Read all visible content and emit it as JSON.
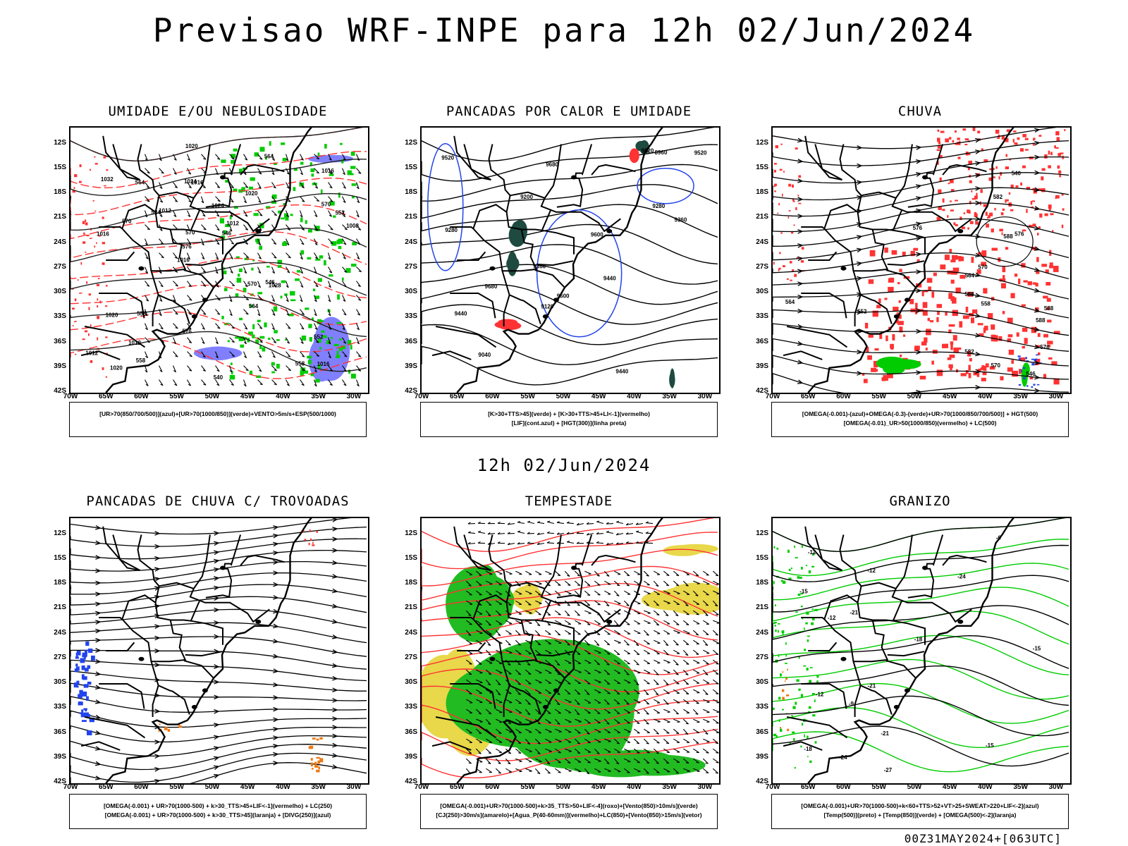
{
  "header": {
    "title": "Previsao WRF-INPE  para 12h 02/Jun/2024",
    "subtitle": "12h 02/Jun/2024",
    "footer": "00Z31MAY2024+[063UTC]"
  },
  "colors": {
    "humidity_blue": "#8080ff",
    "humidity_green": "#00cc00",
    "red": "#ff3333",
    "dark_green": "#1e4a40",
    "blue": "#2244ee",
    "yellow": "#e8d84a",
    "orange": "#ee7711",
    "storm_green": "#22bb22"
  },
  "axes": {
    "lat_labels": [
      "12S",
      "15S",
      "18S",
      "21S",
      "24S",
      "27S",
      "30S",
      "33S",
      "36S",
      "39S",
      "42S"
    ],
    "lon_labels": [
      "70W",
      "65W",
      "60W",
      "55W",
      "50W",
      "45W",
      "40W",
      "35W",
      "30W"
    ]
  },
  "chart_data": [
    {
      "type": "map",
      "id": "p1",
      "title": "UMIDADE E/OU NEBULOSIDADE",
      "legend": [
        "[UR>70(850/700/500)](azul)+[UR>70(1000/850)](verde)+VENTO>5m/s+ESP(500/1000)"
      ],
      "xlim": [
        -70,
        -28
      ],
      "ylim": [
        -42,
        -10
      ],
      "contour_labels": [
        "1016",
        "1016",
        "1016",
        "1016",
        "1020",
        "1020",
        "1024",
        "1024",
        "1020",
        "1012",
        "1012",
        "1012",
        "1016",
        "1012",
        "1028",
        "1032",
        "1020",
        "1008",
        "570",
        "570",
        "576",
        "576",
        "570",
        "564",
        "564",
        "558",
        "558",
        "552",
        "546",
        "540",
        "534",
        "570",
        "564",
        "558",
        "552",
        "546"
      ]
    },
    {
      "type": "map",
      "id": "p2",
      "title": "PANCADAS POR CALOR E UMIDADE",
      "legend": [
        "[K>30+TTS>45](verde) + [K>30+TTS>45+LI<-1](vermelho)",
        "[LIF](cont.azul) + [HGT(300)](linha preta)"
      ],
      "xlim": [
        -70,
        -28
      ],
      "ylim": [
        -42,
        -10
      ],
      "contour_labels": [
        "9680",
        "9680",
        "9600",
        "9600",
        "9520",
        "9520",
        "9520",
        "9440",
        "9440",
        "9440",
        "9360",
        "9360",
        "9280",
        "9280",
        "9200",
        "9120",
        "9040",
        "8960"
      ]
    },
    {
      "type": "map",
      "id": "p3",
      "title": "CHUVA",
      "legend": [
        "[OMEGA(-0.001)-(azul)+OMEGA(-0.3)-(verde)+UR>70(1000/850/700/500)] + HGT(500)",
        "[OMEGA(-0.01)_UR>50(1000/850)(vermelho) + LC(500)"
      ],
      "xlim": [
        -70,
        -28
      ],
      "ylim": [
        -42,
        -10
      ],
      "contour_labels": [
        "588",
        "588",
        "588",
        "588",
        "582",
        "582",
        "576",
        "576",
        "576",
        "570",
        "570",
        "564",
        "564",
        "558",
        "552",
        "546",
        "540"
      ]
    },
    {
      "type": "map",
      "id": "p4",
      "title": "PANCADAS DE CHUVA C/ TROVOADAS",
      "legend": [
        "[OMEGA(-0.001) + UR>70(1000-500) + k>30_TTS>45+LIF<-1](vermelho) + LC(250)",
        "[OMEGA(-0.001) + UR>70(1000-500) + k>30_TTS>45](laranja) + [DIVG(250)](azul)"
      ],
      "xlim": [
        -70,
        -28
      ],
      "ylim": [
        -42,
        -10
      ],
      "contour_labels": []
    },
    {
      "type": "map",
      "id": "p5",
      "title": "TEMPESTADE",
      "legend": [
        "[OMEGA(-0.001)+UR>70(1000-500)+k>35_TTS>50+LIF<-4](roxo)+[Vento(850)>10m/s](verde)",
        "[CJ(250)>30m/s](amarelo)+[Agua_P(40-60mm)](vermelho)+LC(850)+[Vento(850)>15m/s](vetor)"
      ],
      "xlim": [
        -70,
        -28
      ],
      "ylim": [
        -42,
        -10
      ],
      "contour_labels": []
    },
    {
      "type": "map",
      "id": "p6",
      "title": "GRANIZO",
      "legend": [
        "[OMEGA(-0.001)+UR>70(1000-500)+k<60+TTS>52+VT>25+SWEAT>220+LIF<-2](azul)",
        "[Temp(500)](preto) + [Temp(850)](verde) + [OMEGA(500)<-2](laranja)"
      ],
      "xlim": [
        -70,
        -28
      ],
      "ylim": [
        -42,
        -10
      ],
      "contour_labels": [
        "-6",
        "-9",
        "-12",
        "-15",
        "-12",
        "-12",
        "-15",
        "-18",
        "-21",
        "-24",
        "-21",
        "-27",
        "-21",
        "-24",
        "-18",
        "-15",
        "-12"
      ]
    }
  ]
}
